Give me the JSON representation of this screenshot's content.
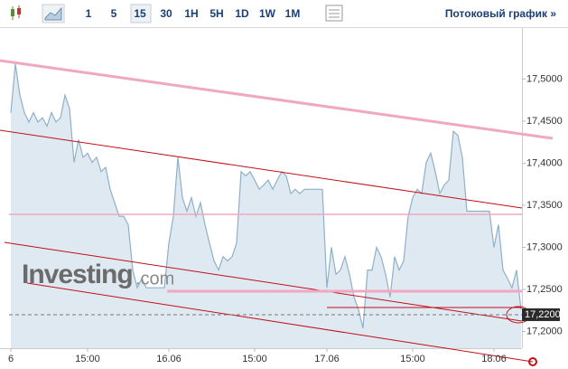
{
  "chart_data": {
    "type": "area",
    "toolbar": {
      "intervals": [
        "1",
        "5",
        "15",
        "30",
        "1H",
        "5H",
        "1D",
        "1W",
        "1M"
      ],
      "active_interval": 2,
      "streaming_link": "Потоковый график »"
    },
    "watermark": {
      "brand": "Investing",
      "suffix": ".com"
    },
    "x": [
      0,
      1,
      2,
      3,
      4,
      5,
      6,
      7,
      8,
      9,
      10,
      11,
      12,
      13,
      14,
      15,
      16,
      17,
      18,
      19,
      20,
      21,
      22,
      23,
      24,
      25,
      26,
      27,
      28,
      29,
      30,
      31,
      32,
      33,
      34,
      35,
      36,
      37,
      38,
      39,
      40,
      41,
      42,
      43,
      44,
      45,
      46,
      47,
      48,
      49,
      50,
      51,
      52,
      53,
      54,
      55,
      56,
      57,
      58,
      59,
      60,
      61,
      62,
      63,
      64,
      65,
      66,
      67,
      68,
      69,
      70,
      71,
      72,
      73,
      74,
      75,
      76,
      77,
      78,
      79,
      80,
      81,
      82,
      83,
      84,
      85,
      86,
      87,
      88,
      89,
      90,
      91,
      92,
      93,
      94,
      95,
      96,
      97,
      98,
      99,
      100,
      101,
      102,
      103,
      104,
      105,
      106,
      107,
      108,
      109,
      110,
      111,
      112,
      113
    ],
    "values": [
      17.46,
      17.518,
      17.481,
      17.46,
      17.449,
      17.46,
      17.449,
      17.454,
      17.444,
      17.46,
      17.449,
      17.454,
      17.481,
      17.465,
      17.401,
      17.428,
      17.407,
      17.412,
      17.401,
      17.407,
      17.39,
      17.395,
      17.369,
      17.353,
      17.337,
      17.337,
      17.327,
      17.273,
      17.252,
      17.263,
      17.252,
      17.252,
      17.252,
      17.252,
      17.252,
      17.305,
      17.337,
      17.407,
      17.359,
      17.343,
      17.359,
      17.337,
      17.353,
      17.327,
      17.305,
      17.284,
      17.273,
      17.289,
      17.284,
      17.289,
      17.305,
      17.39,
      17.385,
      17.39,
      17.38,
      17.369,
      17.374,
      17.38,
      17.369,
      17.38,
      17.39,
      17.385,
      17.364,
      17.369,
      17.364,
      17.369,
      17.369,
      17.369,
      17.369,
      17.369,
      17.252,
      17.3,
      17.268,
      17.273,
      17.289,
      17.268,
      17.241,
      17.226,
      17.204,
      17.273,
      17.273,
      17.3,
      17.289,
      17.268,
      17.241,
      17.289,
      17.273,
      17.284,
      17.337,
      17.359,
      17.369,
      17.364,
      17.401,
      17.412,
      17.39,
      17.364,
      17.374,
      17.38,
      17.438,
      17.433,
      17.407,
      17.343,
      17.343,
      17.343,
      17.343,
      17.343,
      17.343,
      17.3,
      17.327,
      17.273,
      17.263,
      17.252,
      17.273,
      17.226
    ],
    "color": "#8fb0c8",
    "fill": "#dfe9f1",
    "xlim": [
      -2.4,
      113.2
    ],
    "xticks": [
      {
        "value": 0,
        "label": "6"
      },
      {
        "value": 17,
        "label": "15:00"
      },
      {
        "value": 35,
        "label": "16.06"
      },
      {
        "value": 54,
        "label": "15:00"
      },
      {
        "value": 70,
        "label": "17.06"
      },
      {
        "value": 89,
        "label": "15:00"
      },
      {
        "value": 107,
        "label": "18.06"
      }
    ],
    "ylim": [
      17.1802,
      17.5606
    ],
    "yticks": [
      {
        "value": 17.2,
        "label": "17,2000"
      },
      {
        "value": 17.25,
        "label": "17,2500"
      },
      {
        "value": 17.3,
        "label": "17,3000"
      },
      {
        "value": 17.35,
        "label": "17,3500"
      },
      {
        "value": 17.4,
        "label": "17,4000"
      },
      {
        "value": 17.45,
        "label": "17,4500"
      },
      {
        "value": 17.5,
        "label": "17,5000"
      }
    ],
    "current_price": {
      "value": 17.22,
      "label": "17,2200"
    }
  }
}
